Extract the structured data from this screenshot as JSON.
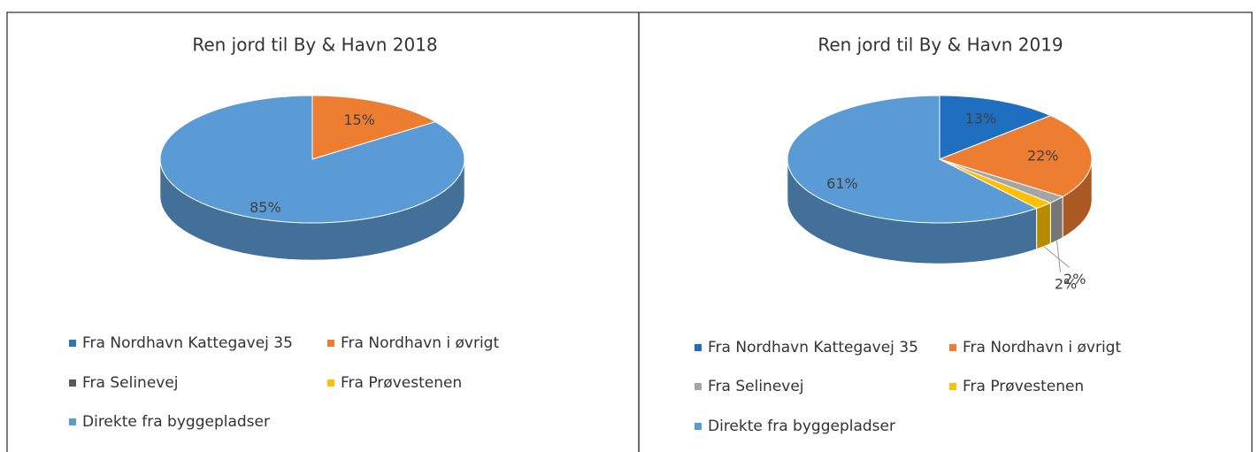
{
  "chart_data": [
    {
      "type": "pie3d",
      "title": "Ren jord til By & Havn 2018",
      "categories": [
        "Fra Nordhavn Kattegavej 35",
        "Fra Nordhavn i øvrigt",
        "Fra Selinevej",
        "Fra Prøvestenen",
        "Direkte fra byggepladser"
      ],
      "values": [
        0,
        15,
        0,
        0,
        85
      ],
      "value_labels": [
        null,
        "15%",
        null,
        null,
        "85%"
      ],
      "colors": [
        "#2e75b6",
        "#ed7d31",
        "#595959",
        "#ffc000",
        "#5b9bd5"
      ]
    },
    {
      "type": "pie3d",
      "title": "Ren jord til By & Havn 2019",
      "categories": [
        "Fra Nordhavn Kattegavej 35",
        "Fra Nordhavn i øvrigt",
        "Fra Selinevej",
        "Fra Prøvestenen",
        "Direkte fra byggepladser"
      ],
      "values": [
        13,
        22,
        2,
        2,
        61
      ],
      "value_labels": [
        "13%",
        "22%",
        "2%",
        "2%",
        "61%"
      ],
      "colors": [
        "#1f6fc0",
        "#ed7d31",
        "#a5a5a5",
        "#ffc000",
        "#5b9bd5"
      ]
    }
  ]
}
